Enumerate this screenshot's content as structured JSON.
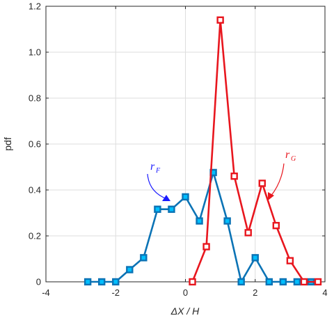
{
  "chart_data": {
    "type": "line",
    "title": "",
    "xlabel": "ΔX / H",
    "ylabel": "pdf",
    "xlim": [
      -4,
      4
    ],
    "ylim": [
      0,
      1.2
    ],
    "xticks": [
      "-4",
      "-2",
      "0",
      "2",
      "4"
    ],
    "yticks": [
      "0",
      "0.2",
      "0.4",
      "0.6",
      "0.8",
      "1.0",
      "1.2"
    ],
    "grid": true,
    "series": [
      {
        "name": "r_F",
        "color": "#0b73b5",
        "marker_fill": "#00bfff",
        "x": [
          -2.8,
          -2.4,
          -2.0,
          -1.6,
          -1.2,
          -0.8,
          -0.4,
          0.0,
          0.4,
          0.8,
          1.2,
          1.6,
          2.0,
          2.4,
          2.8,
          3.2,
          3.6
        ],
        "y": [
          0.0,
          0.0,
          0.0,
          0.053,
          0.105,
          0.316,
          0.316,
          0.37,
          0.265,
          0.476,
          0.265,
          0.0,
          0.105,
          0.0,
          0.0,
          0.0,
          0.0
        ]
      },
      {
        "name": "r_G",
        "color": "#e8161e",
        "marker_fill": "#ffffff",
        "x": [
          0.2,
          0.6,
          1.0,
          1.4,
          1.8,
          2.2,
          2.6,
          3.0,
          3.4,
          3.8
        ],
        "y": [
          0.0,
          0.153,
          1.14,
          0.46,
          0.214,
          0.429,
          0.245,
          0.092,
          0.0,
          0.0
        ]
      }
    ],
    "annotations": [
      {
        "text": "r",
        "subscript": "F",
        "color": "#1a1aff"
      },
      {
        "text": "r",
        "subscript": "G",
        "color": "#e8161e"
      }
    ]
  }
}
